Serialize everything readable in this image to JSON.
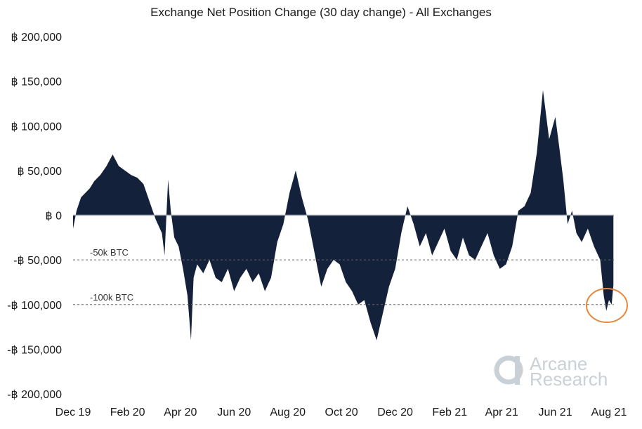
{
  "chart_data": {
    "type": "area",
    "title": "Exchange Net Position Change (30 day change) - All Exchanges",
    "xlabel": "",
    "ylabel": "",
    "ylim": [
      -200000,
      200000
    ],
    "y_ticks": [
      200000,
      150000,
      100000,
      50000,
      0,
      -50000,
      -100000,
      -150000,
      -200000
    ],
    "y_tick_labels": [
      "฿ 200,000",
      "฿ 150,000",
      "฿ 100,000",
      "฿ 50,000",
      "฿ 0",
      "-฿ 50,000",
      "-฿ 100,000",
      "-฿ 150,000",
      "-฿ 200,000"
    ],
    "x_ticks": [
      "2019-12-01",
      "2020-02-01",
      "2020-04-01",
      "2020-06-01",
      "2020-08-01",
      "2020-10-01",
      "2020-12-01",
      "2021-02-01",
      "2021-04-01",
      "2021-06-01",
      "2021-08-01"
    ],
    "x_tick_labels": [
      "Dec 19",
      "Feb 20",
      "Apr 20",
      "Jun 20",
      "Aug 20",
      "Oct 20",
      "Dec 20",
      "Feb 21",
      "Apr 21",
      "Jun 21",
      "Aug 21"
    ],
    "reference_lines": [
      {
        "y": -50000,
        "label": "-50k BTC"
      },
      {
        "y": -100000,
        "label": "-100k BTC"
      }
    ],
    "grid": false,
    "legend": "none",
    "series": [
      {
        "color": "#14213a",
        "x": [
          "2019-12-01",
          "2019-12-05",
          "2019-12-10",
          "2019-12-15",
          "2019-12-20",
          "2019-12-25",
          "2020-01-01",
          "2020-01-08",
          "2020-01-15",
          "2020-01-22",
          "2020-01-29",
          "2020-02-05",
          "2020-02-12",
          "2020-02-19",
          "2020-02-26",
          "2020-03-04",
          "2020-03-11",
          "2020-03-14",
          "2020-03-18",
          "2020-03-21",
          "2020-03-25",
          "2020-03-30",
          "2020-04-04",
          "2020-04-09",
          "2020-04-13",
          "2020-04-16",
          "2020-04-20",
          "2020-04-27",
          "2020-05-04",
          "2020-05-11",
          "2020-05-18",
          "2020-05-25",
          "2020-06-01",
          "2020-06-08",
          "2020-06-15",
          "2020-06-22",
          "2020-06-29",
          "2020-07-06",
          "2020-07-13",
          "2020-07-20",
          "2020-07-27",
          "2020-08-03",
          "2020-08-10",
          "2020-08-17",
          "2020-08-24",
          "2020-09-01",
          "2020-09-08",
          "2020-09-15",
          "2020-09-22",
          "2020-09-29",
          "2020-10-06",
          "2020-10-13",
          "2020-10-20",
          "2020-10-27",
          "2020-11-03",
          "2020-11-10",
          "2020-11-17",
          "2020-11-24",
          "2020-12-01",
          "2020-12-08",
          "2020-12-15",
          "2020-12-22",
          "2020-12-29",
          "2021-01-05",
          "2021-01-12",
          "2021-01-19",
          "2021-01-26",
          "2021-02-02",
          "2021-02-09",
          "2021-02-16",
          "2021-02-23",
          "2021-03-02",
          "2021-03-09",
          "2021-03-16",
          "2021-03-23",
          "2021-03-30",
          "2021-04-06",
          "2021-04-13",
          "2021-04-20",
          "2021-04-27",
          "2021-05-04",
          "2021-05-11",
          "2021-05-14",
          "2021-05-18",
          "2021-05-25",
          "2021-06-01",
          "2021-06-05",
          "2021-06-10",
          "2021-06-15",
          "2021-06-20",
          "2021-06-25",
          "2021-07-01",
          "2021-07-08",
          "2021-07-15",
          "2021-07-22",
          "2021-07-26",
          "2021-07-29",
          "2021-08-01",
          "2021-08-04",
          "2021-08-06"
        ],
        "values": [
          -15000,
          5000,
          20000,
          25000,
          30000,
          38000,
          45000,
          55000,
          68000,
          55000,
          50000,
          45000,
          42000,
          35000,
          15000,
          -5000,
          -20000,
          -45000,
          40000,
          5000,
          -25000,
          -35000,
          -60000,
          -90000,
          -140000,
          -70000,
          -55000,
          -65000,
          -50000,
          -70000,
          -75000,
          -60000,
          -85000,
          -70000,
          -60000,
          -75000,
          -65000,
          -85000,
          -70000,
          -30000,
          -10000,
          25000,
          50000,
          20000,
          -5000,
          -45000,
          -80000,
          -60000,
          -50000,
          -55000,
          -75000,
          -85000,
          -100000,
          -95000,
          -120000,
          -140000,
          -110000,
          -80000,
          -60000,
          -20000,
          10000,
          -10000,
          -35000,
          -20000,
          -45000,
          -30000,
          -15000,
          -40000,
          -50000,
          -25000,
          -45000,
          -50000,
          -35000,
          -20000,
          -45000,
          -60000,
          -55000,
          -35000,
          5000,
          10000,
          25000,
          70000,
          100000,
          140000,
          85000,
          110000,
          80000,
          40000,
          -10000,
          5000,
          -20000,
          -30000,
          -15000,
          -35000,
          -50000,
          -90000,
          -107000,
          -95000,
          -100000,
          -78000
        ]
      }
    ]
  },
  "watermark": {
    "line1": "Arcane",
    "line2": "Research"
  },
  "colors": {
    "area": "#14213a",
    "highlight_circle": "#e8863a",
    "watermark": "#c9d1d6"
  }
}
